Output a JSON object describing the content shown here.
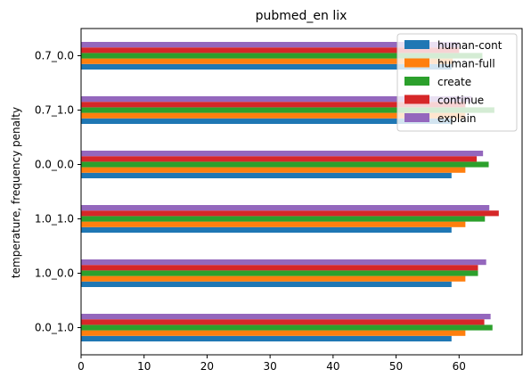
{
  "chart_data": {
    "type": "bar",
    "orientation": "horizontal",
    "title": "pubmed_en lix",
    "xlabel": "",
    "ylabel": "temperature, frequency penalty",
    "xlim": [
      0,
      70
    ],
    "x_ticks": [
      0,
      10,
      20,
      30,
      40,
      50,
      60
    ],
    "grid": false,
    "legend_position": "top-right",
    "categories": [
      "0.7_0.0",
      "0.7_1.0",
      "0.0_0.0",
      "1.0_1.0",
      "1.0_0.0",
      "0.0_1.0"
    ],
    "series": [
      {
        "name": "human-cont",
        "color": "#1f77b4",
        "values": [
          58.8,
          58.8,
          58.8,
          58.8,
          58.8,
          58.8
        ]
      },
      {
        "name": "human-full",
        "color": "#ff7f0e",
        "values": [
          59.0,
          61.0,
          61.0,
          61.0,
          61.0,
          61.0
        ]
      },
      {
        "name": "create",
        "color": "#2ca02c",
        "values": [
          63.7,
          65.6,
          64.7,
          64.1,
          63.0,
          65.3
        ]
      },
      {
        "name": "continue",
        "color": "#d62728",
        "values": [
          60.0,
          61.0,
          62.8,
          66.3,
          63.0,
          64.0
        ]
      },
      {
        "name": "explain",
        "color": "#9467bd",
        "values": [
          60.0,
          62.0,
          63.8,
          64.8,
          64.3,
          65.0
        ]
      }
    ]
  }
}
